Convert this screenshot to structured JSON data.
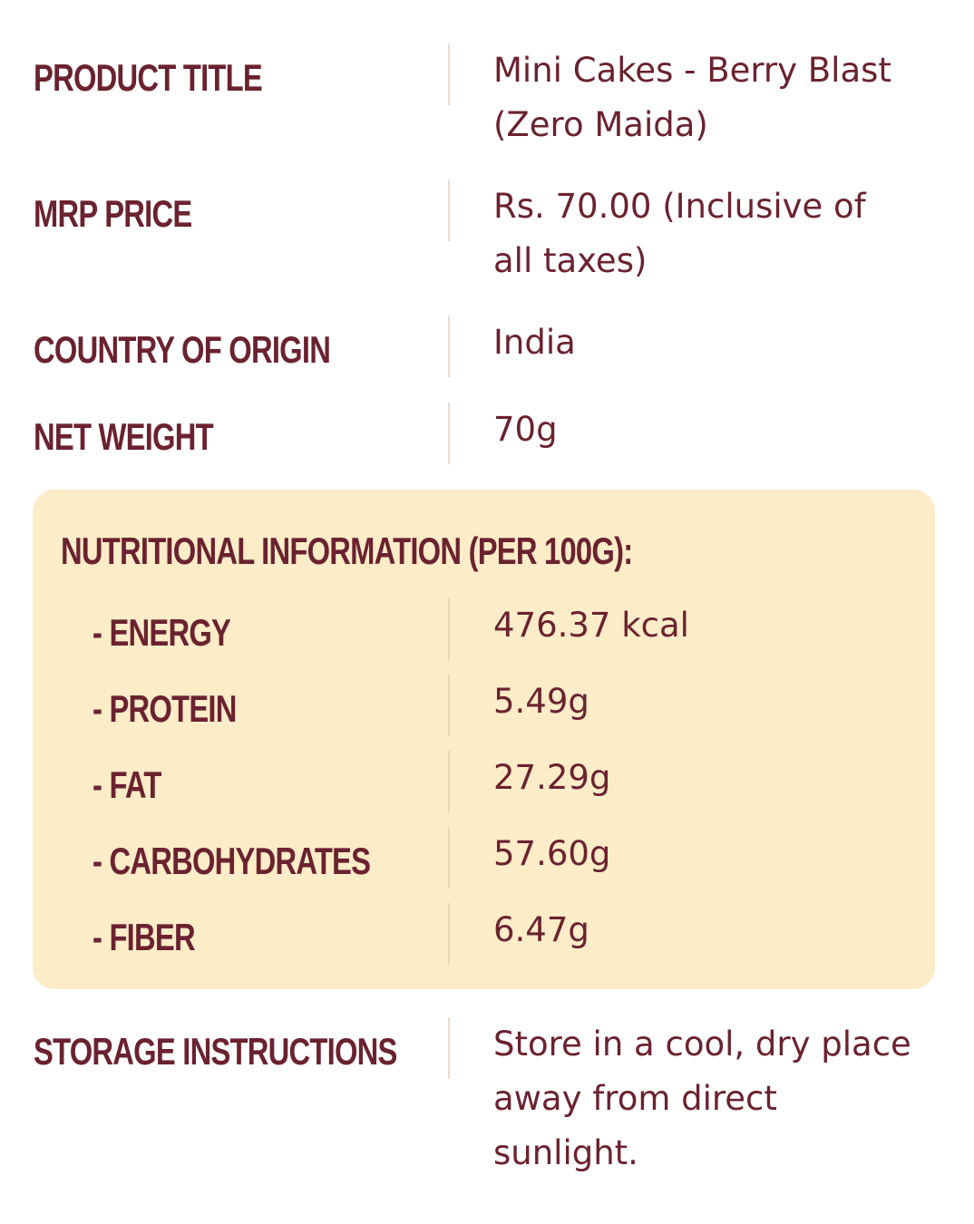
{
  "details": [
    {
      "label": "PRODUCT TITLE",
      "value": "Mini Cakes - Berry Blast (Zero Maida)"
    },
    {
      "label": "MRP PRICE",
      "value": "Rs. 70.00 (Inclusive of all taxes)"
    },
    {
      "label": "COUNTRY OF ORIGIN",
      "value": "India"
    },
    {
      "label": "NET WEIGHT",
      "value": "70g"
    }
  ],
  "nutrition": {
    "heading": "NUTRITIONAL INFORMATION (PER 100G):",
    "items": [
      {
        "label": "- ENERGY",
        "value": "476.37 kcal"
      },
      {
        "label": "- PROTEIN",
        "value": "5.49g"
      },
      {
        "label": "- FAT",
        "value": "27.29g"
      },
      {
        "label": "- CARBOHYDRATES",
        "value": "57.60g"
      },
      {
        "label": "- FIBER",
        "value": "6.47g"
      }
    ]
  },
  "storage": {
    "label": "STORAGE INSTRUCTIONS",
    "value": "Store in a cool, dry place away from direct sunlight."
  },
  "colors": {
    "text": "#6b2230",
    "panel": "#fdecc8"
  }
}
